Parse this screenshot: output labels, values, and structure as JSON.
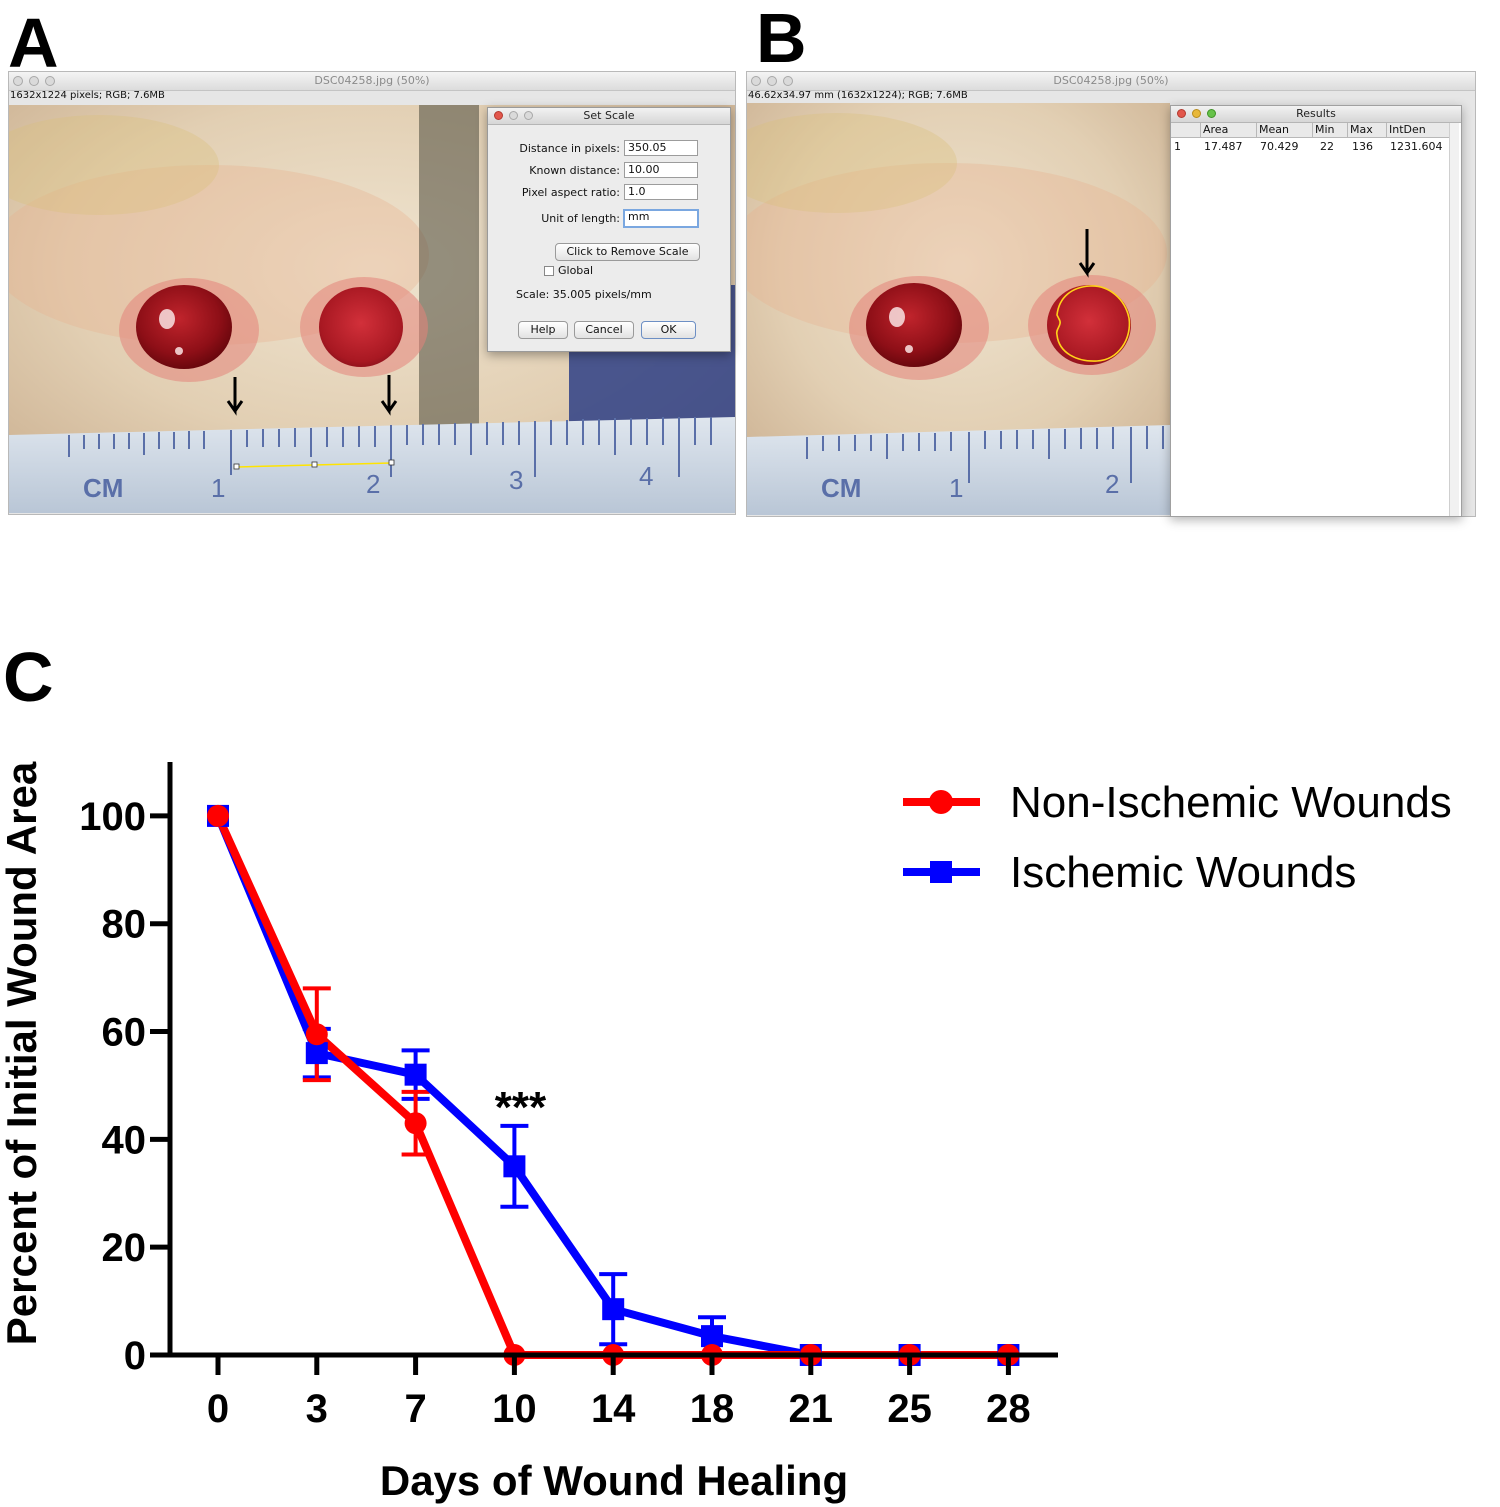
{
  "panels": {
    "a_label": "A",
    "b_label": "B",
    "c_label": "C"
  },
  "panel_a": {
    "window_title": "DSC04258.jpg (50%)",
    "info": "1632x1224 pixels; RGB; 7.6MB",
    "ruler": {
      "unit": "CM",
      "ticks": [
        "1",
        "2",
        "3",
        "4"
      ]
    },
    "dialog": {
      "title": "Set Scale",
      "distance_label": "Distance in pixels:",
      "distance_value": "350.05",
      "known_label": "Known distance:",
      "known_value": "10.00",
      "aspect_label": "Pixel aspect ratio:",
      "aspect_value": "1.0",
      "unit_label": "Unit of length:",
      "unit_value": "mm",
      "remove_scale": "Click to Remove Scale",
      "global_label": "Global",
      "scale_text": "Scale: 35.005 pixels/mm",
      "help": "Help",
      "cancel": "Cancel",
      "ok": "OK"
    }
  },
  "panel_b": {
    "window_title": "DSC04258.jpg (50%)",
    "info": "46.62x34.97 mm (1632x1224); RGB; 7.6MB",
    "ruler": {
      "unit": "CM",
      "ticks": [
        "1",
        "2"
      ]
    },
    "results": {
      "title": "Results",
      "headers": [
        "Area",
        "Mean",
        "Min",
        "Max",
        "IntDen"
      ],
      "row_index": "1",
      "row": [
        "17.487",
        "70.429",
        "22",
        "136",
        "1231.604"
      ]
    }
  },
  "chart_data": {
    "type": "line",
    "title": "",
    "xlabel": "Days of Wound Healing",
    "ylabel": "Percent of Initial Wound Area",
    "categories": [
      "0",
      "3",
      "7",
      "10",
      "14",
      "18",
      "21",
      "25",
      "28"
    ],
    "yticks": [
      "0",
      "20",
      "40",
      "60",
      "80",
      "100"
    ],
    "ylim": [
      0,
      110
    ],
    "grid": false,
    "legend_position": "top-right",
    "series": [
      {
        "name": "Ischemic Wounds",
        "color": "#0000ff",
        "marker": "square",
        "values": [
          100,
          56,
          52,
          35,
          8.5,
          3.5,
          0,
          0,
          0
        ],
        "errors": [
          0,
          4.5,
          4.5,
          7.5,
          6.5,
          3.5,
          0,
          0,
          0
        ]
      },
      {
        "name": "Non-Ischemic Wounds",
        "color": "#ff0000",
        "marker": "circle",
        "values": [
          100,
          59.5,
          43,
          0,
          0,
          0,
          0,
          0,
          0
        ],
        "errors": [
          0,
          8.5,
          5.8,
          0,
          0,
          0,
          0,
          0,
          0
        ]
      }
    ],
    "legend_order": [
      "Non-Ischemic Wounds",
      "Ischemic Wounds"
    ],
    "annotations": [
      {
        "category": "10",
        "text": "***"
      }
    ]
  }
}
